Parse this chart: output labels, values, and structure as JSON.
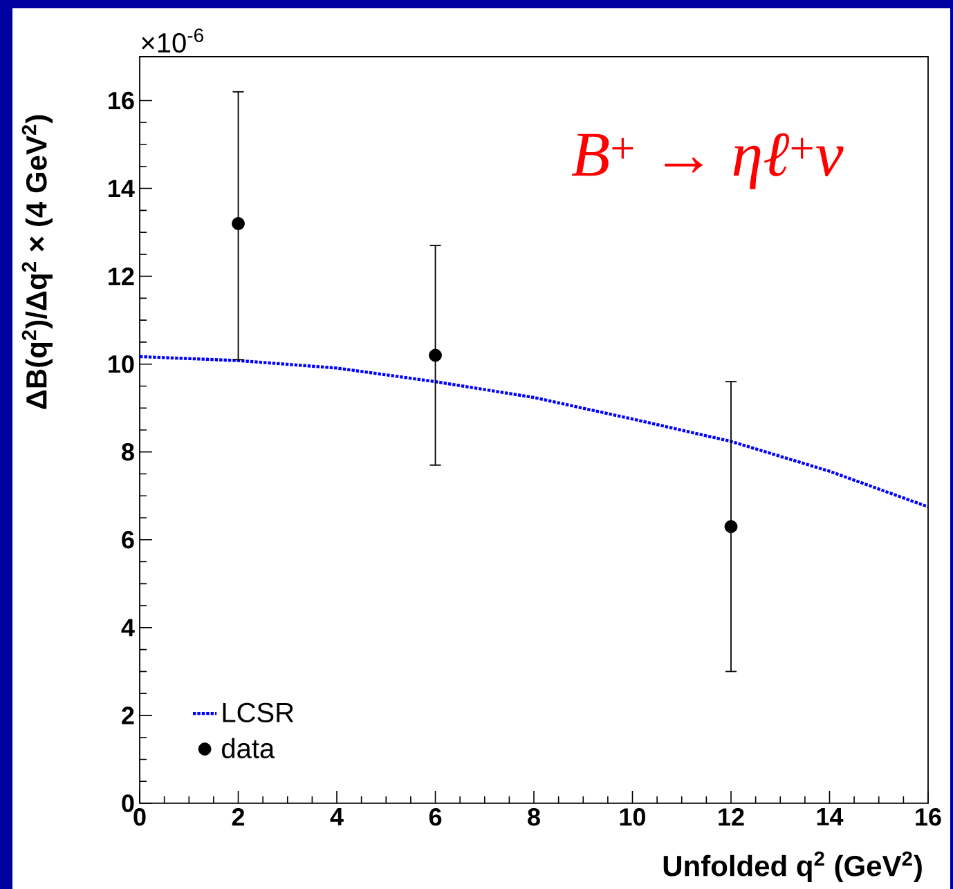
{
  "chart_data": {
    "type": "scatter",
    "title": "*B*$^{+}$ → *ηℓ*$^{+}$*ν*",
    "xlabel": "Unfolded q$^{2}$ (GeV$^{2}$)",
    "ylabel": "ΔB(q$^{2}$)/Δq$^{2}$ × (4 GeV$^{2}$)",
    "annotations": [
      "×10$^{-6}$"
    ],
    "xlim": [
      0,
      16
    ],
    "ylim": [
      0,
      17
    ],
    "xticks": [
      0,
      2,
      4,
      6,
      8,
      10,
      12,
      14,
      16
    ],
    "yticks": [
      0,
      2,
      4,
      6,
      8,
      10,
      12,
      14,
      16
    ],
    "legend": "bottom left",
    "series": [
      {
        "name": "LCSR",
        "type": "line",
        "line_style": "dotted",
        "marker": "none",
        "color": "#0000ff",
        "x": [
          0,
          2,
          4,
          6,
          8,
          10,
          12,
          14,
          16
        ],
        "values": [
          10.17,
          10.08,
          9.91,
          9.6,
          9.24,
          8.75,
          8.24,
          7.56,
          6.75
        ]
      },
      {
        "name": "data",
        "marker": "circle",
        "color": "#000000",
        "x": [
          2,
          6,
          12
        ],
        "values": [
          13.2,
          10.2,
          6.3
        ],
        "errors": [
          [
            10.1,
            16.2
          ],
          [
            7.7,
            12.7
          ],
          [
            3.0,
            9.6
          ]
        ]
      }
    ]
  }
}
